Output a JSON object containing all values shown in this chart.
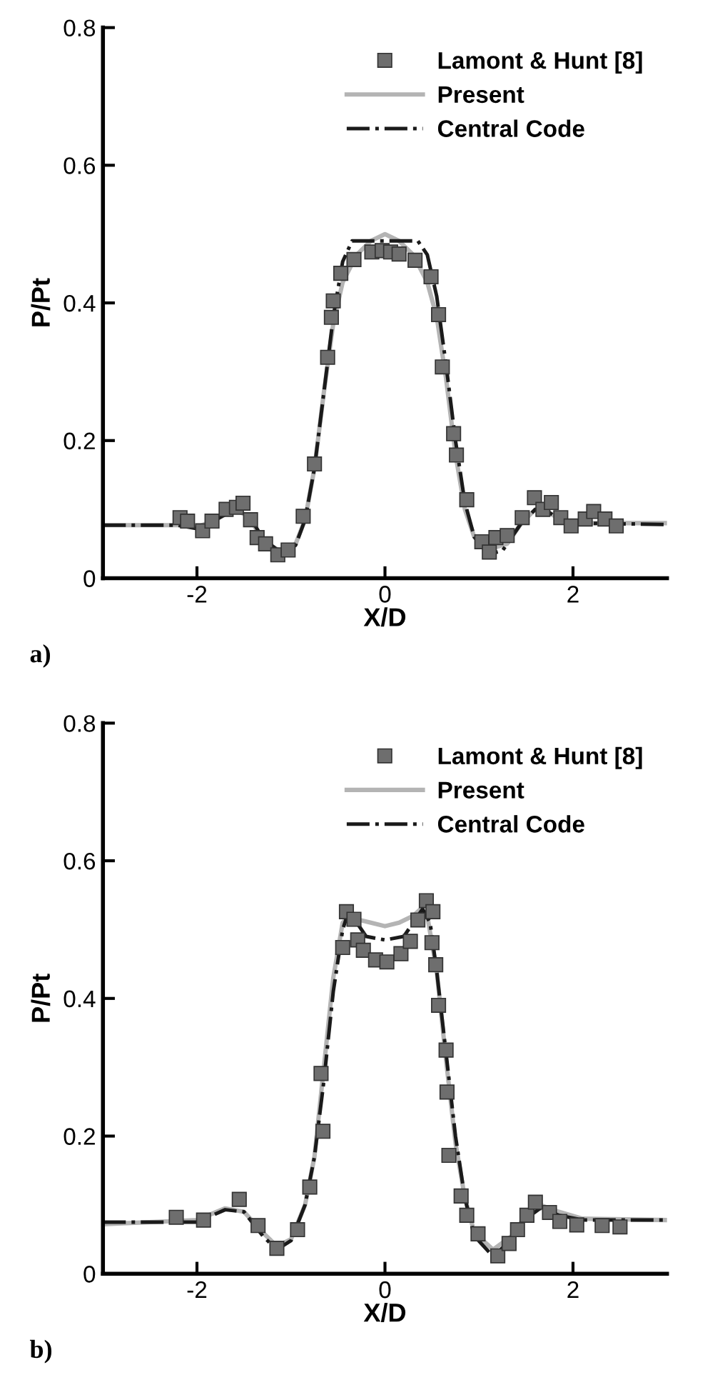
{
  "chart_data": [
    {
      "type": "scatter",
      "xlabel": "X/D",
      "ylabel": "P/Pt",
      "xlim": [
        -3,
        3
      ],
      "ylim": [
        0,
        0.8
      ],
      "xticks": [
        -2,
        0,
        2
      ],
      "yticks": [
        0,
        0.2,
        0.4,
        0.6,
        0.8
      ],
      "grid": false,
      "legend": "top right",
      "annotations": [
        "a)"
      ],
      "series": [
        {
          "name": "Lamont & Hunt [8]",
          "marker": "square",
          "color": "#6e6e6e",
          "x": [
            -2.18,
            -2.1,
            -1.94,
            -1.84,
            -1.69,
            -1.58,
            -1.51,
            -1.43,
            -1.36,
            -1.27,
            -1.14,
            -1.03,
            -0.87,
            -0.75,
            -0.61,
            -0.57,
            -0.55,
            -0.47,
            -0.33,
            -0.14,
            -0.03,
            0.06,
            0.15,
            0.32,
            0.49,
            0.57,
            0.61,
            0.73,
            0.76,
            0.87,
            1.03,
            1.11,
            1.18,
            1.3,
            1.46,
            1.59,
            1.68,
            1.77,
            1.87,
            1.98,
            2.13,
            2.22,
            2.34,
            2.46
          ],
          "values": [
            0.088,
            0.083,
            0.069,
            0.083,
            0.1,
            0.103,
            0.109,
            0.085,
            0.059,
            0.05,
            0.034,
            0.041,
            0.09,
            0.166,
            0.321,
            0.379,
            0.403,
            0.443,
            0.463,
            0.474,
            0.476,
            0.474,
            0.471,
            0.462,
            0.438,
            0.383,
            0.307,
            0.21,
            0.179,
            0.114,
            0.053,
            0.038,
            0.059,
            0.062,
            0.088,
            0.117,
            0.1,
            0.11,
            0.088,
            0.076,
            0.086,
            0.097,
            0.086,
            0.076
          ]
        },
        {
          "name": "Present",
          "type": "line",
          "marker": "none",
          "line_style": "solid",
          "color": "#b4b4b4",
          "x": [
            -3,
            -2.2,
            -2.0,
            -1.8,
            -1.6,
            -1.45,
            -1.3,
            -1.1,
            -0.95,
            -0.85,
            -0.75,
            -0.65,
            -0.55,
            -0.45,
            -0.3,
            -0.15,
            0,
            0.15,
            0.3,
            0.45,
            0.55,
            0.65,
            0.75,
            0.85,
            0.95,
            1.1,
            1.3,
            1.45,
            1.6,
            1.75,
            1.9,
            2.1,
            2.5,
            3
          ],
          "values": [
            0.077,
            0.077,
            0.074,
            0.085,
            0.1,
            0.09,
            0.055,
            0.038,
            0.05,
            0.085,
            0.16,
            0.27,
            0.37,
            0.43,
            0.47,
            0.49,
            0.5,
            0.49,
            0.47,
            0.43,
            0.38,
            0.29,
            0.18,
            0.1,
            0.06,
            0.042,
            0.05,
            0.08,
            0.1,
            0.095,
            0.082,
            0.08,
            0.08,
            0.08
          ]
        },
        {
          "name": "Central Code",
          "type": "line",
          "marker": "none",
          "line_style": "dashdot",
          "color": "#1a1a1a",
          "x": [
            -3,
            -2.2,
            -2.0,
            -1.8,
            -1.6,
            -1.45,
            -1.3,
            -1.1,
            -0.95,
            -0.85,
            -0.75,
            -0.65,
            -0.55,
            -0.45,
            -0.35,
            0,
            0.35,
            0.45,
            0.55,
            0.65,
            0.75,
            0.85,
            0.95,
            1.1,
            1.25,
            1.45,
            1.6,
            1.75,
            1.9,
            2.1,
            3
          ],
          "values": [
            0.077,
            0.077,
            0.072,
            0.085,
            0.1,
            0.092,
            0.058,
            0.036,
            0.048,
            0.085,
            0.16,
            0.27,
            0.38,
            0.46,
            0.49,
            0.49,
            0.49,
            0.47,
            0.41,
            0.31,
            0.2,
            0.11,
            0.06,
            0.035,
            0.04,
            0.08,
            0.1,
            0.095,
            0.082,
            0.08,
            0.078
          ]
        }
      ]
    },
    {
      "type": "scatter",
      "xlabel": "X/D",
      "ylabel": "P/Pt",
      "xlim": [
        -3,
        3
      ],
      "ylim": [
        0,
        0.8
      ],
      "xticks": [
        -2,
        0,
        2
      ],
      "yticks": [
        0,
        0.2,
        0.4,
        0.6,
        0.8
      ],
      "grid": false,
      "legend": "top right",
      "annotations": [
        "b)"
      ],
      "series": [
        {
          "name": "Lamont & Hunt [8]",
          "marker": "square",
          "color": "#6e6e6e",
          "x": [
            -2.22,
            -1.93,
            -1.55,
            -1.35,
            -1.15,
            -0.93,
            -0.8,
            -0.66,
            -0.68,
            -0.45,
            -0.41,
            -0.33,
            -0.29,
            -0.23,
            -0.1,
            0.02,
            0.17,
            0.27,
            0.35,
            0.44,
            0.51,
            0.5,
            0.54,
            0.57,
            0.65,
            0.66,
            0.68,
            0.81,
            0.87,
            0.99,
            1.2,
            1.32,
            1.41,
            1.51,
            1.6,
            1.75,
            1.86,
            2.04,
            2.31,
            2.5
          ],
          "values": [
            0.082,
            0.078,
            0.108,
            0.07,
            0.037,
            0.064,
            0.126,
            0.207,
            0.291,
            0.474,
            0.526,
            0.515,
            0.485,
            0.47,
            0.456,
            0.453,
            0.465,
            0.483,
            0.514,
            0.542,
            0.526,
            0.481,
            0.449,
            0.39,
            0.325,
            0.264,
            0.172,
            0.113,
            0.085,
            0.058,
            0.026,
            0.044,
            0.064,
            0.085,
            0.104,
            0.089,
            0.076,
            0.071,
            0.07,
            0.068
          ]
        },
        {
          "name": "Present",
          "type": "line",
          "marker": "none",
          "line_style": "solid",
          "color": "#b4b4b4",
          "x": [
            -3,
            -2.0,
            -1.7,
            -1.5,
            -1.3,
            -1.15,
            -1.0,
            -0.85,
            -0.75,
            -0.65,
            -0.55,
            -0.45,
            -0.38,
            -0.3,
            -0.15,
            0,
            0.15,
            0.3,
            0.38,
            0.45,
            0.55,
            0.65,
            0.75,
            0.85,
            0.95,
            1.15,
            1.35,
            1.5,
            1.65,
            1.85,
            2.1,
            3
          ],
          "values": [
            0.072,
            0.078,
            0.095,
            0.09,
            0.06,
            0.04,
            0.05,
            0.1,
            0.17,
            0.3,
            0.43,
            0.51,
            0.52,
            0.515,
            0.51,
            0.505,
            0.51,
            0.52,
            0.53,
            0.52,
            0.44,
            0.31,
            0.19,
            0.11,
            0.06,
            0.035,
            0.055,
            0.085,
            0.1,
            0.09,
            0.08,
            0.078
          ]
        },
        {
          "name": "Central Code",
          "type": "line",
          "marker": "none",
          "line_style": "dashdot",
          "color": "#1a1a1a",
          "x": [
            -3,
            -2.0,
            -1.7,
            -1.5,
            -1.3,
            -1.15,
            -1.0,
            -0.85,
            -0.75,
            -0.65,
            -0.55,
            -0.45,
            -0.38,
            -0.3,
            -0.2,
            0,
            0.2,
            0.3,
            0.4,
            0.48,
            0.55,
            0.65,
            0.75,
            0.85,
            0.95,
            1.15,
            1.35,
            1.5,
            1.65,
            1.85,
            2.1,
            3
          ],
          "values": [
            0.075,
            0.075,
            0.093,
            0.09,
            0.055,
            0.035,
            0.048,
            0.1,
            0.17,
            0.28,
            0.41,
            0.5,
            0.53,
            0.51,
            0.49,
            0.485,
            0.49,
            0.51,
            0.53,
            0.51,
            0.44,
            0.32,
            0.2,
            0.11,
            0.055,
            0.025,
            0.05,
            0.08,
            0.095,
            0.085,
            0.078,
            0.078
          ]
        }
      ]
    }
  ]
}
